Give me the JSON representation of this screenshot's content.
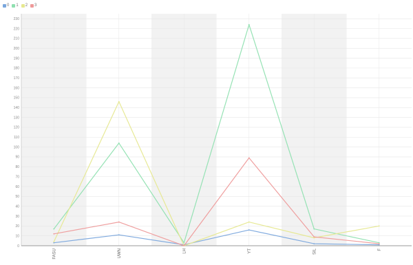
{
  "chart_data": {
    "type": "line",
    "categories": [
      "FASU",
      "UWN",
      "LH",
      "YT",
      "SIL",
      "F"
    ],
    "series": [
      {
        "name": "0",
        "color": "#7aa7dd",
        "values": [
          3,
          11,
          1,
          16,
          2,
          1
        ]
      },
      {
        "name": "1",
        "color": "#8fe0b0",
        "values": [
          17,
          104,
          3,
          224,
          17,
          3
        ]
      },
      {
        "name": "2",
        "color": "#e6e890",
        "values": [
          4,
          146,
          0,
          24,
          8,
          20
        ]
      },
      {
        "name": "3",
        "color": "#ee9a9a",
        "values": [
          12,
          24,
          0,
          89,
          9,
          2
        ]
      }
    ],
    "y_ticks": [
      0,
      10,
      20,
      30,
      40,
      50,
      60,
      70,
      80,
      90,
      100,
      110,
      120,
      130,
      140,
      150,
      160,
      170,
      180,
      190,
      200,
      210,
      220,
      230
    ],
    "ylim": [
      0,
      235
    ],
    "grid": true,
    "legend_position": "top-left",
    "band_colors": [
      "#f2f2f2",
      "#ffffff"
    ]
  }
}
